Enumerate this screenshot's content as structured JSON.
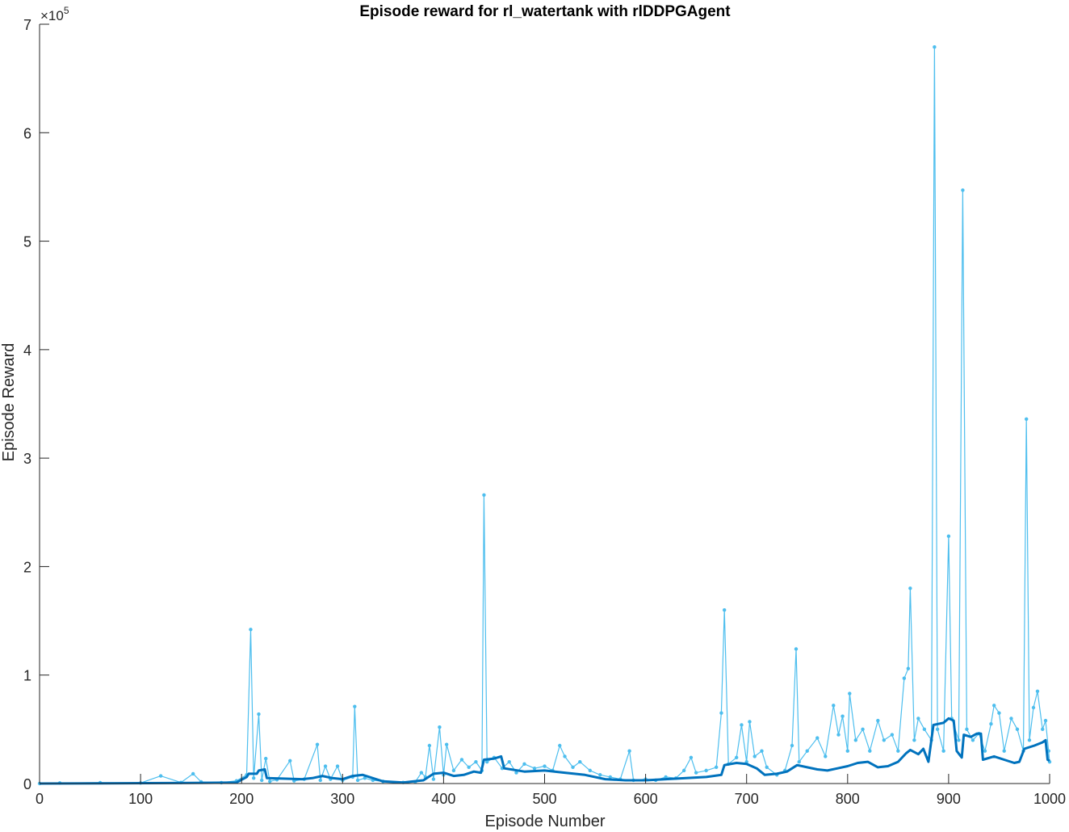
{
  "chart_data": {
    "type": "line",
    "title": "Episode reward for rl_watertank with rlDDPGAgent",
    "xlabel": "Episode Number",
    "ylabel": "Episode Reward",
    "y_exponent_label": "×10",
    "y_exponent_power": "5",
    "xlim": [
      0,
      1000
    ],
    "ylim": [
      0,
      700000
    ],
    "xticks": [
      0,
      100,
      200,
      300,
      400,
      500,
      600,
      700,
      800,
      900,
      1000
    ],
    "yticks": [
      0,
      1,
      2,
      3,
      4,
      5,
      6,
      7
    ],
    "grid": false,
    "colors": {
      "episode": "#4DBEEE",
      "average": "#0072BD",
      "axis": "#262626"
    },
    "series": [
      {
        "key": "episode",
        "style": "line-with-markers",
        "points": [
          [
            0,
            0
          ],
          [
            20,
            500
          ],
          [
            60,
            800
          ],
          [
            100,
            500
          ],
          [
            120,
            7000
          ],
          [
            140,
            1000
          ],
          [
            152,
            9000
          ],
          [
            160,
            1500
          ],
          [
            180,
            800
          ],
          [
            195,
            2500
          ],
          [
            205,
            8000
          ],
          [
            209,
            142000
          ],
          [
            212,
            5000
          ],
          [
            217,
            64000
          ],
          [
            220,
            3000
          ],
          [
            224,
            23000
          ],
          [
            228,
            2000
          ],
          [
            235,
            3500
          ],
          [
            248,
            21000
          ],
          [
            252,
            2500
          ],
          [
            262,
            4000
          ],
          [
            275,
            36000
          ],
          [
            278,
            3000
          ],
          [
            283,
            16000
          ],
          [
            288,
            4000
          ],
          [
            295,
            16000
          ],
          [
            300,
            3000
          ],
          [
            310,
            6000
          ],
          [
            312,
            71000
          ],
          [
            315,
            3000
          ],
          [
            322,
            5000
          ],
          [
            330,
            3000
          ],
          [
            340,
            2000
          ],
          [
            360,
            1000
          ],
          [
            372,
            1500
          ],
          [
            378,
            10000
          ],
          [
            382,
            6000
          ],
          [
            386,
            35000
          ],
          [
            390,
            4000
          ],
          [
            396,
            52000
          ],
          [
            400,
            8000
          ],
          [
            403,
            36000
          ],
          [
            410,
            12000
          ],
          [
            418,
            22000
          ],
          [
            425,
            15000
          ],
          [
            432,
            20000
          ],
          [
            438,
            12000
          ],
          [
            440,
            266000
          ],
          [
            443,
            20000
          ],
          [
            450,
            24000
          ],
          [
            458,
            14000
          ],
          [
            465,
            20000
          ],
          [
            472,
            10000
          ],
          [
            480,
            18000
          ],
          [
            490,
            14000
          ],
          [
            500,
            16000
          ],
          [
            508,
            12000
          ],
          [
            515,
            35000
          ],
          [
            520,
            25000
          ],
          [
            528,
            15000
          ],
          [
            535,
            20000
          ],
          [
            545,
            12000
          ],
          [
            555,
            8000
          ],
          [
            565,
            6000
          ],
          [
            575,
            4000
          ],
          [
            584,
            30000
          ],
          [
            588,
            3000
          ],
          [
            600,
            4000
          ],
          [
            610,
            3000
          ],
          [
            620,
            6000
          ],
          [
            630,
            5000
          ],
          [
            638,
            12000
          ],
          [
            645,
            24000
          ],
          [
            650,
            10000
          ],
          [
            660,
            12000
          ],
          [
            670,
            15000
          ],
          [
            675,
            65000
          ],
          [
            678,
            160000
          ],
          [
            682,
            18000
          ],
          [
            690,
            24000
          ],
          [
            695,
            54000
          ],
          [
            700,
            20000
          ],
          [
            703,
            57000
          ],
          [
            708,
            25000
          ],
          [
            715,
            30000
          ],
          [
            720,
            15000
          ],
          [
            730,
            8000
          ],
          [
            738,
            12000
          ],
          [
            745,
            35000
          ],
          [
            749,
            124000
          ],
          [
            752,
            20000
          ],
          [
            760,
            30000
          ],
          [
            770,
            42000
          ],
          [
            778,
            25000
          ],
          [
            786,
            72000
          ],
          [
            791,
            45000
          ],
          [
            795,
            62000
          ],
          [
            800,
            30000
          ],
          [
            802,
            83000
          ],
          [
            808,
            40000
          ],
          [
            815,
            50000
          ],
          [
            822,
            30000
          ],
          [
            830,
            58000
          ],
          [
            836,
            40000
          ],
          [
            844,
            45000
          ],
          [
            850,
            30000
          ],
          [
            856,
            97000
          ],
          [
            860,
            106000
          ],
          [
            862,
            180000
          ],
          [
            866,
            40000
          ],
          [
            870,
            60000
          ],
          [
            876,
            50000
          ],
          [
            883,
            40000
          ],
          [
            886,
            679000
          ],
          [
            889,
            50000
          ],
          [
            895,
            30000
          ],
          [
            900,
            228000
          ],
          [
            903,
            60000
          ],
          [
            910,
            40000
          ],
          [
            914,
            547000
          ],
          [
            918,
            50000
          ],
          [
            924,
            40000
          ],
          [
            930,
            46000
          ],
          [
            936,
            30000
          ],
          [
            942,
            55000
          ],
          [
            945,
            72000
          ],
          [
            950,
            65000
          ],
          [
            955,
            30000
          ],
          [
            962,
            60000
          ],
          [
            968,
            50000
          ],
          [
            974,
            30000
          ],
          [
            977,
            336000
          ],
          [
            980,
            40000
          ],
          [
            984,
            70000
          ],
          [
            988,
            85000
          ],
          [
            993,
            50000
          ],
          [
            996,
            58000
          ],
          [
            999,
            30000
          ],
          [
            1000,
            20000
          ]
        ]
      },
      {
        "key": "average",
        "style": "thick-line",
        "points": [
          [
            0,
            0
          ],
          [
            150,
            500
          ],
          [
            195,
            1000
          ],
          [
            205,
            6000
          ],
          [
            207,
            9000
          ],
          [
            215,
            9000
          ],
          [
            217,
            12000
          ],
          [
            223,
            13000
          ],
          [
            225,
            5000
          ],
          [
            260,
            4000
          ],
          [
            270,
            5000
          ],
          [
            280,
            7000
          ],
          [
            290,
            5000
          ],
          [
            300,
            4000
          ],
          [
            310,
            7000
          ],
          [
            320,
            8000
          ],
          [
            330,
            5000
          ],
          [
            340,
            2000
          ],
          [
            360,
            1000
          ],
          [
            380,
            3000
          ],
          [
            390,
            9000
          ],
          [
            400,
            10000
          ],
          [
            410,
            7000
          ],
          [
            420,
            8000
          ],
          [
            430,
            11000
          ],
          [
            437,
            10000
          ],
          [
            440,
            22000
          ],
          [
            450,
            23000
          ],
          [
            457,
            25000
          ],
          [
            460,
            14000
          ],
          [
            480,
            11000
          ],
          [
            500,
            12000
          ],
          [
            520,
            10000
          ],
          [
            540,
            8000
          ],
          [
            560,
            4000
          ],
          [
            580,
            3000
          ],
          [
            600,
            3000
          ],
          [
            620,
            4000
          ],
          [
            640,
            5000
          ],
          [
            660,
            6000
          ],
          [
            675,
            8000
          ],
          [
            678,
            17000
          ],
          [
            690,
            19000
          ],
          [
            700,
            18000
          ],
          [
            710,
            14000
          ],
          [
            718,
            8000
          ],
          [
            730,
            9000
          ],
          [
            740,
            11000
          ],
          [
            750,
            17000
          ],
          [
            760,
            15000
          ],
          [
            770,
            13000
          ],
          [
            780,
            12000
          ],
          [
            790,
            14000
          ],
          [
            800,
            16000
          ],
          [
            810,
            19000
          ],
          [
            820,
            20000
          ],
          [
            830,
            15000
          ],
          [
            840,
            16000
          ],
          [
            850,
            20000
          ],
          [
            858,
            28000
          ],
          [
            862,
            31000
          ],
          [
            870,
            27000
          ],
          [
            875,
            32000
          ],
          [
            880,
            20000
          ],
          [
            885,
            54000
          ],
          [
            895,
            56000
          ],
          [
            900,
            60000
          ],
          [
            905,
            58000
          ],
          [
            908,
            30000
          ],
          [
            913,
            24000
          ],
          [
            915,
            45000
          ],
          [
            922,
            43000
          ],
          [
            928,
            46000
          ],
          [
            932,
            46000
          ],
          [
            934,
            22000
          ],
          [
            945,
            25000
          ],
          [
            955,
            22000
          ],
          [
            965,
            19000
          ],
          [
            970,
            20000
          ],
          [
            975,
            32000
          ],
          [
            985,
            35000
          ],
          [
            993,
            38000
          ],
          [
            996,
            40000
          ],
          [
            998,
            22000
          ],
          [
            1000,
            21000
          ]
        ]
      }
    ]
  }
}
